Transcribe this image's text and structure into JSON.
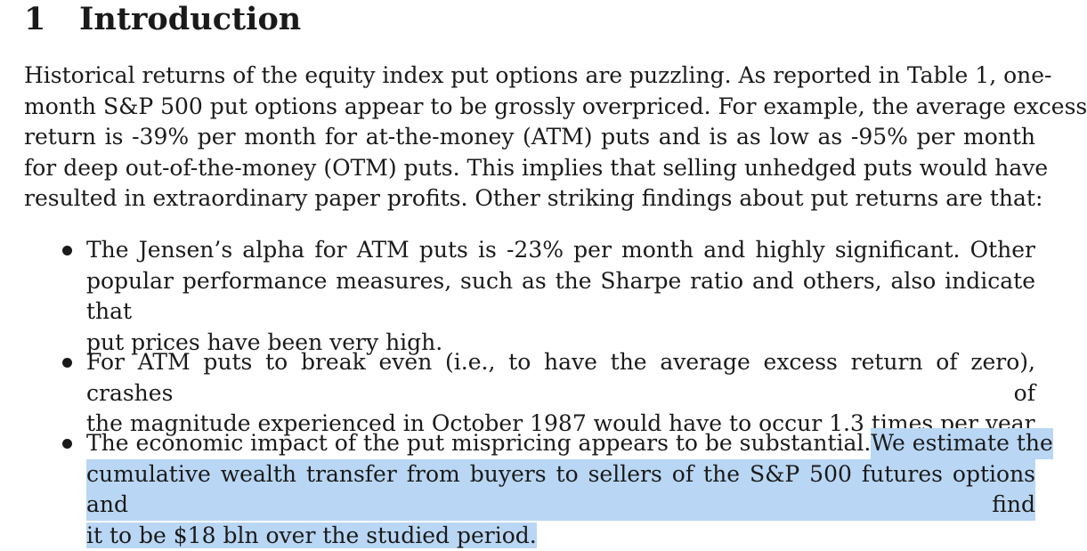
{
  "section": {
    "number": "1",
    "title": "Introduction"
  },
  "intro_paragraph": {
    "lines": [
      "Historical returns of the equity index put options are puzzling. As reported in Table 1, one-",
      "month S&P 500 put options appear to be grossly overpriced. For example, the average excess",
      "return is -39% per month for at-the-money (ATM) puts and is as low as -95% per month",
      "for deep out-of-the-money (OTM) puts. This implies that selling unhedged puts would have",
      "resulted in extraordinary paper profits. Other striking findings about put returns are that:"
    ]
  },
  "bullets": [
    {
      "lines": [
        "The Jensen’s alpha for ATM puts is -23% per month and highly significant. Other",
        "popular performance measures, such as the Sharpe ratio and others, also indicate that",
        "put prices have been very high."
      ]
    },
    {
      "lines": [
        "For ATM puts to break even (i.e., to have the average excess return of zero), crashes of",
        "the magnitude experienced in October 1987 would have to occur 1.3 times per year."
      ]
    },
    {
      "line1_plain": "The economic impact of the put mispricing appears to be substantial.",
      "line1_highlighted": "We estimate the",
      "line2_highlighted": "cumulative wealth transfer from buyers to sellers of the S&P 500 futures options and find",
      "line3_highlighted": "it to be $18 bln over the studied period."
    }
  ],
  "highlight_color": "#b9d7f4"
}
